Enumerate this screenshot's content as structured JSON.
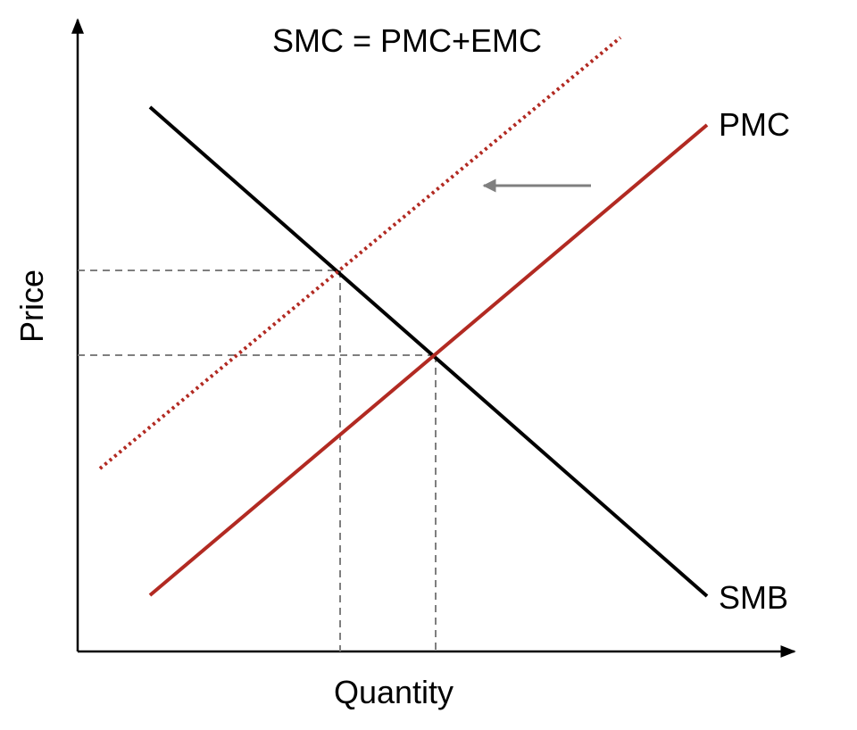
{
  "labels": {
    "smc": "SMC = PMC+EMC",
    "pmc": "PMC",
    "smb": "SMB",
    "x_axis": "Quantity",
    "y_axis": "Price"
  },
  "colors": {
    "axis": "#000000",
    "smb_line": "#000000",
    "pmc_line": "#b22a22",
    "smc_line": "#b22a22",
    "guide": "#7f7f7f",
    "arrow": "#7f7f7f"
  },
  "annotations": {
    "shift_direction": "left",
    "smc_line_style": "dotted",
    "guide_line_style": "dashed"
  }
}
